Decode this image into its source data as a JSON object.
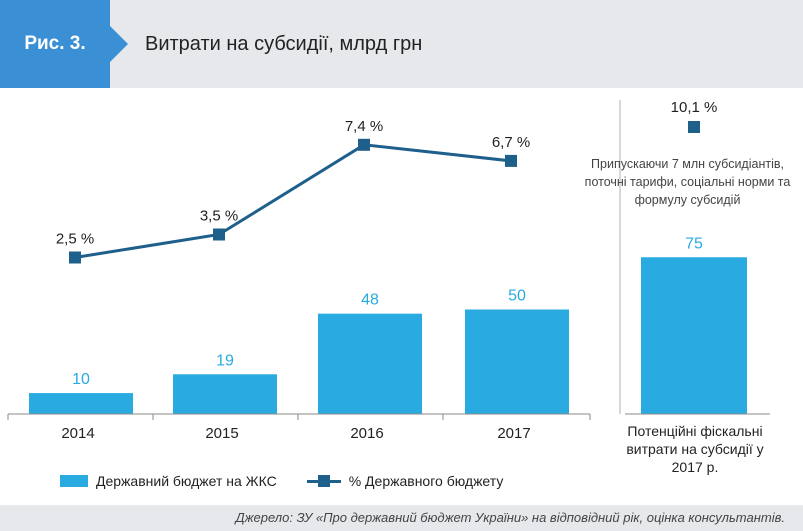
{
  "header": {
    "figure_label": "Рис. 3.",
    "title": "Витрати на субсидії, млрд грн"
  },
  "colors": {
    "bar": "#29abe2",
    "bar_label": "#29abe2",
    "line": "#1f5f8b",
    "header_bg": "#e6e8ec",
    "accent": "#3b8fd4"
  },
  "chart_data": {
    "type": "bar",
    "categories": [
      "2014",
      "2015",
      "2016",
      "2017"
    ],
    "series": [
      {
        "name": "Державний бюджет на ЖКС",
        "type": "bar",
        "values": [
          10,
          19,
          48,
          50
        ],
        "labels": [
          "10",
          "19",
          "48",
          "50"
        ]
      },
      {
        "name": "% Державного бюджету",
        "type": "line",
        "values": [
          2.5,
          3.5,
          7.4,
          6.7
        ],
        "labels": [
          "2,5 %",
          "3,5 %",
          "7,4 %",
          "6,7 %"
        ]
      }
    ],
    "projection": {
      "category": "Потенційні фіскальні витрати на субсидії у 2017 р.",
      "bar_value": 75,
      "bar_label": "75",
      "pct_value": 10.1,
      "pct_label": "10,1 %",
      "note": "Припускаючи 7 млн субсидіантів, поточні тарифи, соціальні норми та формулу субсидій"
    },
    "ylim_bars": [
      0,
      100
    ],
    "ylim_pct": [
      0,
      12
    ],
    "legend_position": "bottom-left"
  },
  "legend": {
    "bar_label": "Державний бюджет на ЖКС",
    "line_label": "% Державного бюджету"
  },
  "source": "Джерело: ЗУ «Про державний бюджет України» на відповідний рік, оцінка консультантів."
}
